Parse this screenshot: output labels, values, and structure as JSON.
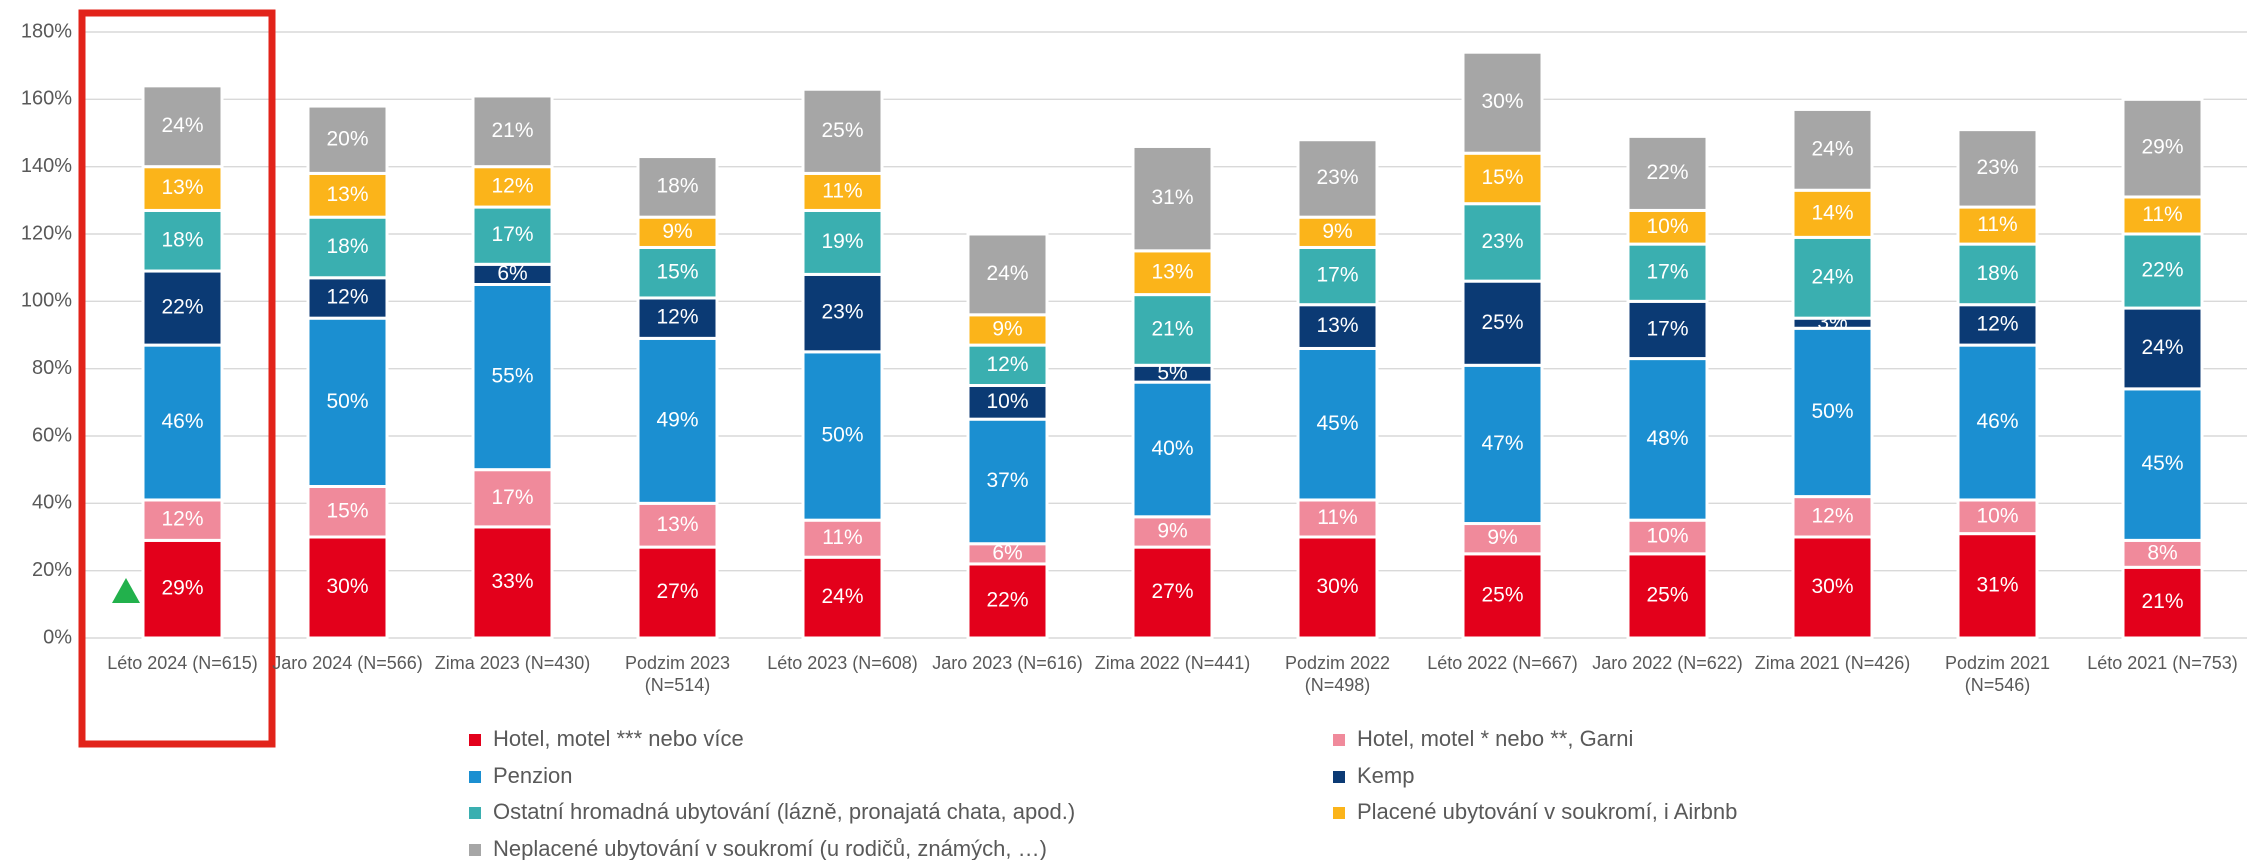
{
  "chart_data": {
    "type": "stacked_bar",
    "categories": [
      "Léto 2024 (N=615)",
      "Jaro 2024 (N=566)",
      "Zima 2023 (N=430)",
      "Podzim 2023 (N=514)",
      "Léto 2023 (N=608)",
      "Jaro 2023 (N=616)",
      "Zima 2022 (N=441)",
      "Podzim 2022 (N=498)",
      "Léto 2022 (N=667)",
      "Jaro 2022 (N=622)",
      "Zima 2021 (N=426)",
      "Podzim 2021 (N=546)",
      "Léto 2021 (N=753)"
    ],
    "series": [
      {
        "name": "Hotel, motel *** nebo více",
        "color": "#e3001b",
        "values": [
          29,
          30,
          33,
          27,
          24,
          22,
          27,
          30,
          25,
          25,
          30,
          31,
          21
        ],
        "value_labels": [
          "29%",
          "30%",
          "33%",
          "27%",
          "24%",
          "22%",
          "27%",
          "30%",
          "25%",
          "25%",
          "30%",
          "31%",
          "21%"
        ]
      },
      {
        "name": "Hotel, motel * nebo **, Garni",
        "color": "#f08a9b",
        "values": [
          12,
          15,
          17,
          13,
          11,
          6,
          9,
          11,
          9,
          10,
          12,
          10,
          8
        ],
        "value_labels": [
          "12%",
          "15%",
          "17%",
          "13%",
          "11%",
          "6%",
          "9%",
          "11%",
          "9%",
          "10%",
          "12%",
          "10%",
          "8%"
        ]
      },
      {
        "name": "Penzion",
        "color": "#1b8fd1",
        "values": [
          46,
          50,
          55,
          49,
          50,
          37,
          40,
          45,
          47,
          48,
          50,
          46,
          45
        ],
        "value_labels": [
          "46%",
          "50%",
          "55%",
          "49%",
          "50%",
          "37%",
          "40%",
          "45%",
          "47%",
          "48%",
          "50%",
          "46%",
          "45%"
        ]
      },
      {
        "name": "Kemp",
        "color": "#0b3a74",
        "values": [
          22,
          12,
          6,
          12,
          23,
          10,
          5,
          13,
          25,
          17,
          3,
          12,
          24
        ],
        "value_labels": [
          "22%",
          "12%",
          "6%",
          "12%",
          "23%",
          "10%",
          "5%",
          "13%",
          "25%",
          "17%",
          "3%",
          "12%",
          "24%"
        ]
      },
      {
        "name": "Ostatní hromadná ubytování (lázně, pronajatá chata, apod.)",
        "color": "#3aafb0",
        "values": [
          18,
          18,
          17,
          15,
          19,
          12,
          21,
          17,
          23,
          17,
          24,
          18,
          22
        ],
        "value_labels": [
          "18%",
          "18%",
          "17%",
          "15%",
          "19%",
          "12%",
          "21%",
          "17%",
          "23%",
          "17%",
          "24%",
          "18%",
          "22%"
        ]
      },
      {
        "name": "Placené ubytování v soukromí, i Airbnb",
        "color": "#fbb41a",
        "values": [
          13,
          13,
          12,
          9,
          11,
          9,
          13,
          9,
          15,
          10,
          14,
          11,
          11
        ],
        "value_labels": [
          "13%",
          "13%",
          "12%",
          "9%",
          "11%",
          "9%",
          "13%",
          "9%",
          "15%",
          "10%",
          "14%",
          "11%",
          "11%"
        ]
      },
      {
        "name": "Neplacené ubytování v soukromí (u rodičů, známých, …)",
        "color": "#a6a6a6",
        "values": [
          24,
          20,
          21,
          18,
          25,
          24,
          31,
          23,
          30,
          22,
          24,
          23,
          29
        ],
        "value_labels": [
          "24%",
          "20%",
          "21%",
          "18%",
          "25%",
          "24%",
          "31%",
          "23%",
          "30%",
          "22%",
          "24%",
          "23%",
          "29%"
        ]
      }
    ],
    "ylim": [
      0,
      180
    ],
    "yticks": [
      {
        "value": 0,
        "label": "0%"
      },
      {
        "value": 20,
        "label": "20%"
      },
      {
        "value": 40,
        "label": "40%"
      },
      {
        "value": 60,
        "label": "60%"
      },
      {
        "value": 80,
        "label": "80%"
      },
      {
        "value": 100,
        "label": "100%"
      },
      {
        "value": 120,
        "label": "120%"
      },
      {
        "value": 140,
        "label": "140%"
      },
      {
        "value": 160,
        "label": "160%"
      },
      {
        "value": 180,
        "label": "180%"
      }
    ],
    "grid": true,
    "legend": "bottom"
  }
}
